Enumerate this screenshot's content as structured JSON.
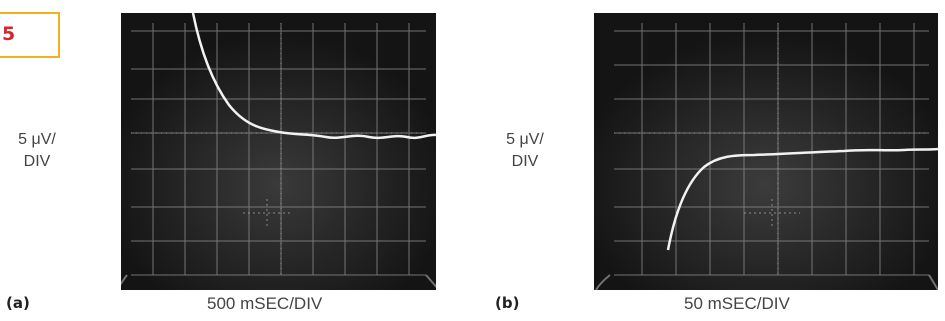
{
  "figure_number": "5",
  "panels": [
    {
      "label": "(a)",
      "vertical_scale_line1": "5 μV/",
      "vertical_scale_line2": "DIV",
      "horizontal_scale": "500 mSEC/DIV"
    },
    {
      "label": "(b)",
      "vertical_scale_line1": "5 μV/",
      "vertical_scale_line2": "DIV",
      "horizontal_scale": "50 mSEC/DIV"
    }
  ],
  "colors": {
    "badge_border": "#f2b21c",
    "figure_number": "#d8262c",
    "screen": "#1c1c1c",
    "grid": "#8a8a8a",
    "trace": "#f2f2f2"
  }
}
